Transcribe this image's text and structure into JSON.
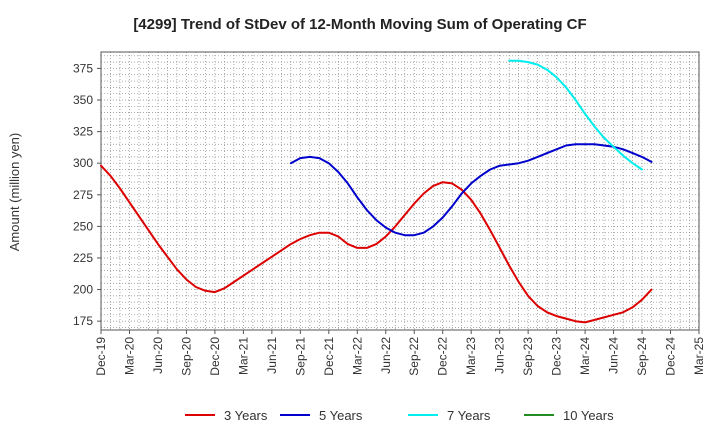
{
  "chart_data": {
    "type": "line",
    "title": "[4299]  Trend of StDev of 12-Month Moving Sum of Operating CF",
    "xlabel": "",
    "ylabel": "Amount (million yen)",
    "ylim": [
      168,
      388
    ],
    "yticks": [
      175,
      200,
      225,
      250,
      275,
      300,
      325,
      350,
      375
    ],
    "x_tick_labels": [
      "Dec-19",
      "Mar-20",
      "Jun-20",
      "Sep-20",
      "Dec-20",
      "Mar-21",
      "Jun-21",
      "Sep-21",
      "Dec-21",
      "Mar-22",
      "Jun-22",
      "Sep-22",
      "Dec-22",
      "Mar-23",
      "Jun-23",
      "Sep-23",
      "Dec-23",
      "Mar-24",
      "Jun-24",
      "Sep-24",
      "Dec-24",
      "Mar-25"
    ],
    "grid": true,
    "legend_position": "bottom",
    "series": [
      {
        "name": "3 Years",
        "color": "#dd0000",
        "points": [
          [
            0,
            298
          ],
          [
            1,
            290
          ],
          [
            2,
            280
          ],
          [
            3,
            269
          ],
          [
            4,
            258
          ],
          [
            5,
            247
          ],
          [
            6,
            236
          ],
          [
            7,
            226
          ],
          [
            8,
            216
          ],
          [
            9,
            208
          ],
          [
            10,
            202
          ],
          [
            11,
            199
          ],
          [
            12,
            198
          ],
          [
            13,
            201
          ],
          [
            14,
            206
          ],
          [
            15,
            211
          ],
          [
            16,
            216
          ],
          [
            17,
            221
          ],
          [
            18,
            226
          ],
          [
            19,
            231
          ],
          [
            20,
            236
          ],
          [
            21,
            240
          ],
          [
            22,
            243
          ],
          [
            23,
            245
          ],
          [
            24,
            245
          ],
          [
            25,
            242
          ],
          [
            26,
            236
          ],
          [
            27,
            233
          ],
          [
            28,
            233
          ],
          [
            29,
            236
          ],
          [
            30,
            242
          ],
          [
            31,
            250
          ],
          [
            32,
            259
          ],
          [
            33,
            268
          ],
          [
            34,
            276
          ],
          [
            35,
            282
          ],
          [
            36,
            285
          ],
          [
            37,
            284
          ],
          [
            38,
            279
          ],
          [
            39,
            271
          ],
          [
            40,
            260
          ],
          [
            41,
            247
          ],
          [
            42,
            233
          ],
          [
            43,
            219
          ],
          [
            44,
            206
          ],
          [
            45,
            195
          ],
          [
            46,
            187
          ],
          [
            47,
            182
          ],
          [
            48,
            179
          ],
          [
            49,
            177
          ],
          [
            50,
            175
          ],
          [
            51,
            174
          ],
          [
            52,
            176
          ],
          [
            53,
            178
          ],
          [
            54,
            180
          ],
          [
            55,
            182
          ],
          [
            56,
            186
          ],
          [
            57,
            192
          ],
          [
            58,
            200
          ]
        ]
      },
      {
        "name": "5 Years",
        "color": "#0000cc",
        "points": [
          [
            20,
            300
          ],
          [
            21,
            304
          ],
          [
            22,
            305
          ],
          [
            23,
            304
          ],
          [
            24,
            300
          ],
          [
            25,
            293
          ],
          [
            26,
            284
          ],
          [
            27,
            273
          ],
          [
            28,
            263
          ],
          [
            29,
            255
          ],
          [
            30,
            249
          ],
          [
            31,
            245
          ],
          [
            32,
            243
          ],
          [
            33,
            243
          ],
          [
            34,
            245
          ],
          [
            35,
            250
          ],
          [
            36,
            257
          ],
          [
            37,
            266
          ],
          [
            38,
            276
          ],
          [
            39,
            284
          ],
          [
            40,
            290
          ],
          [
            41,
            295
          ],
          [
            42,
            298
          ],
          [
            43,
            299
          ],
          [
            44,
            300
          ],
          [
            45,
            302
          ],
          [
            46,
            305
          ],
          [
            47,
            308
          ],
          [
            48,
            311
          ],
          [
            49,
            314
          ],
          [
            50,
            315
          ],
          [
            51,
            315
          ],
          [
            52,
            315
          ],
          [
            53,
            314
          ],
          [
            54,
            313
          ],
          [
            55,
            311
          ],
          [
            56,
            308
          ],
          [
            57,
            305
          ],
          [
            58,
            301
          ]
        ]
      },
      {
        "name": "7 Years",
        "color": "#00eeee",
        "points": [
          [
            43,
            381
          ],
          [
            44,
            381
          ],
          [
            45,
            380
          ],
          [
            46,
            378
          ],
          [
            47,
            374
          ],
          [
            48,
            368
          ],
          [
            49,
            360
          ],
          [
            50,
            350
          ],
          [
            51,
            339
          ],
          [
            52,
            329
          ],
          [
            53,
            320
          ],
          [
            54,
            313
          ],
          [
            55,
            306
          ],
          [
            56,
            300
          ],
          [
            57,
            295
          ]
        ]
      },
      {
        "name": "10 Years",
        "color": "#228b22",
        "points": []
      }
    ]
  }
}
